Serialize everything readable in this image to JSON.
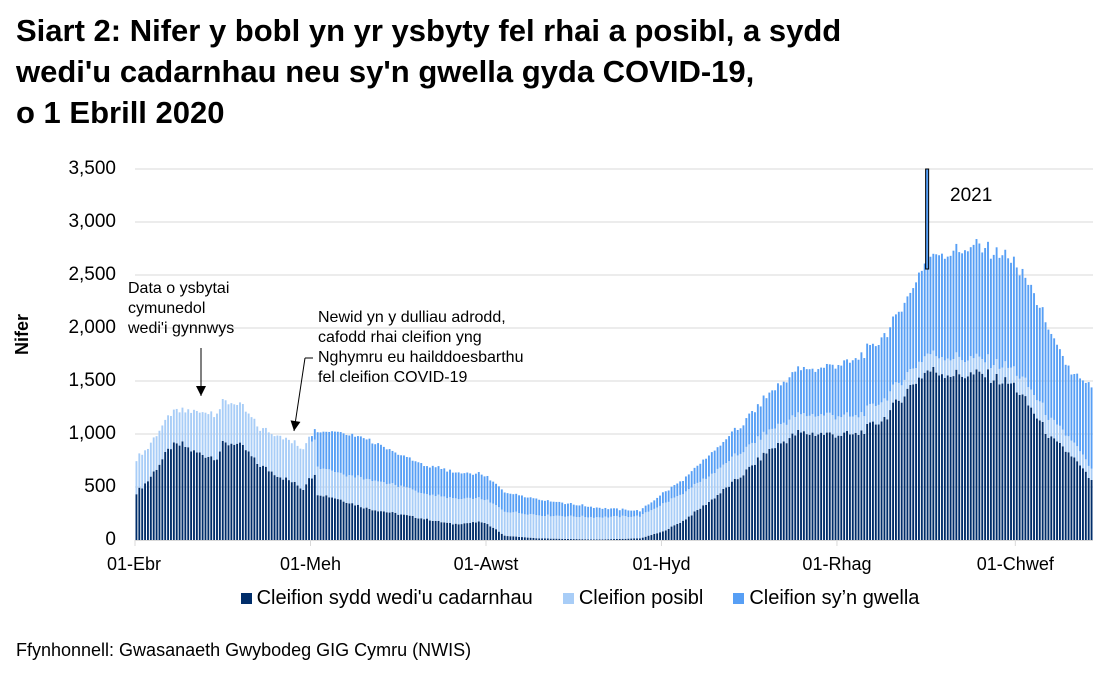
{
  "title": {
    "line1": "Siart 2: Nifer y bobl yn yr ysbyty fel rhai a posibl, a sydd",
    "line2": "wedi'u cadarnhau neu sy'n gwella gyda COVID-19,",
    "line3": "o 1 Ebrill 2020"
  },
  "source": "Ffynhonnell: Gwasanaeth Gwybodeg GIG Cymru (NWIS)",
  "annotations": {
    "community": [
      "Data o ysbytai",
      "cymunedol",
      "wedi'i gynnwys"
    ],
    "reporting": [
      "Newid yn y dulliau adrodd,",
      "cafodd rhai cleifion yng",
      "Nghymru eu hailddoesbarthu",
      "fel cleifion COVID-19"
    ],
    "year": "2021"
  },
  "colors": {
    "confirmed": "#002D6A",
    "suspected": "#A8CDF7",
    "recovering": "#579FF5",
    "grid": "#D9D9D9",
    "divider": "#000000"
  },
  "chart_data": {
    "type": "bar",
    "stacked": true,
    "title": "Siart 2: Nifer y bobl yn yr ysbyty fel rhai a posibl, a sydd wedi'u cadarnhau neu sy'n gwella gyda COVID-19, o 1 Ebrill 2020",
    "xlabel": "",
    "ylabel": "Nifer",
    "ylim": [
      0,
      3500
    ],
    "yticks": [
      "0",
      "500",
      "1,000",
      "1,500",
      "2,000",
      "2,500",
      "3,000",
      "3,500"
    ],
    "ytick_values": [
      0,
      500,
      1000,
      1500,
      2000,
      2500,
      3000,
      3500
    ],
    "xticks": [
      "01-Ebr",
      "01-Meh",
      "01-Awst",
      "01-Hyd",
      "01-Rhag",
      "01-Chwef"
    ],
    "xtick_days": [
      0,
      61,
      122,
      183,
      244,
      306
    ],
    "grid": true,
    "legend_position": "bottom",
    "legend": [
      "Cleifion sydd wedi'u cadarnhau",
      "Cleifion posibl",
      "Cleifion sy’n gwella"
    ],
    "n_days": 333,
    "start_date": "2020-04-01",
    "year_divider_day": 275,
    "series_keypoints_note": "Daily values interpolated from [day, value] keypoints read off the chart",
    "series": [
      {
        "name": "Cleifion sydd wedi'u cadarnhau",
        "keypoints": [
          [
            0,
            450
          ],
          [
            4,
            560
          ],
          [
            8,
            720
          ],
          [
            12,
            880
          ],
          [
            16,
            900
          ],
          [
            20,
            830
          ],
          [
            24,
            800
          ],
          [
            28,
            780
          ],
          [
            30,
            900
          ],
          [
            34,
            920
          ],
          [
            38,
            850
          ],
          [
            42,
            720
          ],
          [
            46,
            660
          ],
          [
            50,
            600
          ],
          [
            54,
            550
          ],
          [
            58,
            480
          ],
          [
            60,
            600
          ],
          [
            62,
            600
          ],
          [
            63,
            440
          ],
          [
            70,
            390
          ],
          [
            80,
            300
          ],
          [
            90,
            250
          ],
          [
            100,
            200
          ],
          [
            110,
            150
          ],
          [
            120,
            170
          ],
          [
            124,
            120
          ],
          [
            128,
            40
          ],
          [
            140,
            15
          ],
          [
            160,
            5
          ],
          [
            175,
            15
          ],
          [
            183,
            80
          ],
          [
            190,
            180
          ],
          [
            200,
            380
          ],
          [
            210,
            600
          ],
          [
            220,
            850
          ],
          [
            230,
            1010
          ],
          [
            240,
            1000
          ],
          [
            250,
            990
          ],
          [
            260,
            1150
          ],
          [
            270,
            1480
          ],
          [
            275,
            1600
          ],
          [
            285,
            1560
          ],
          [
            295,
            1560
          ],
          [
            305,
            1460
          ],
          [
            312,
            1200
          ],
          [
            318,
            950
          ],
          [
            325,
            800
          ],
          [
            333,
            520
          ]
        ]
      },
      {
        "name": "Cleifion posibl",
        "keypoints": [
          [
            0,
            320
          ],
          [
            4,
            310
          ],
          [
            8,
            320
          ],
          [
            12,
            310
          ],
          [
            16,
            320
          ],
          [
            20,
            370
          ],
          [
            24,
            410
          ],
          [
            28,
            420
          ],
          [
            30,
            400
          ],
          [
            34,
            380
          ],
          [
            38,
            370
          ],
          [
            42,
            350
          ],
          [
            46,
            360
          ],
          [
            50,
            380
          ],
          [
            54,
            380
          ],
          [
            58,
            380
          ],
          [
            60,
            390
          ],
          [
            62,
            320
          ],
          [
            63,
            260
          ],
          [
            70,
            250
          ],
          [
            80,
            280
          ],
          [
            90,
            270
          ],
          [
            100,
            240
          ],
          [
            110,
            240
          ],
          [
            120,
            220
          ],
          [
            130,
            230
          ],
          [
            140,
            220
          ],
          [
            160,
            210
          ],
          [
            175,
            210
          ],
          [
            183,
            260
          ],
          [
            190,
            260
          ],
          [
            200,
            240
          ],
          [
            210,
            230
          ],
          [
            220,
            180
          ],
          [
            230,
            170
          ],
          [
            240,
            180
          ],
          [
            250,
            170
          ],
          [
            260,
            180
          ],
          [
            270,
            150
          ],
          [
            275,
            160
          ],
          [
            285,
            160
          ],
          [
            295,
            140
          ],
          [
            305,
            150
          ],
          [
            312,
            180
          ],
          [
            318,
            170
          ],
          [
            325,
            150
          ],
          [
            333,
            100
          ]
        ]
      },
      {
        "name": "Cleifion sy’n gwella",
        "keypoints": [
          [
            0,
            0
          ],
          [
            60,
            0
          ],
          [
            62,
            100
          ],
          [
            63,
            330
          ],
          [
            70,
            380
          ],
          [
            80,
            380
          ],
          [
            90,
            300
          ],
          [
            100,
            270
          ],
          [
            110,
            250
          ],
          [
            120,
            230
          ],
          [
            125,
            200
          ],
          [
            130,
            180
          ],
          [
            140,
            150
          ],
          [
            160,
            90
          ],
          [
            175,
            50
          ],
          [
            183,
            100
          ],
          [
            190,
            130
          ],
          [
            200,
            200
          ],
          [
            210,
            250
          ],
          [
            220,
            350
          ],
          [
            230,
            420
          ],
          [
            240,
            450
          ],
          [
            250,
            540
          ],
          [
            260,
            600
          ],
          [
            270,
            750
          ],
          [
            275,
            900
          ],
          [
            285,
            1020
          ],
          [
            295,
            1050
          ],
          [
            305,
            1000
          ],
          [
            312,
            950
          ],
          [
            318,
            800
          ],
          [
            325,
            630
          ],
          [
            333,
            820
          ]
        ]
      }
    ]
  }
}
